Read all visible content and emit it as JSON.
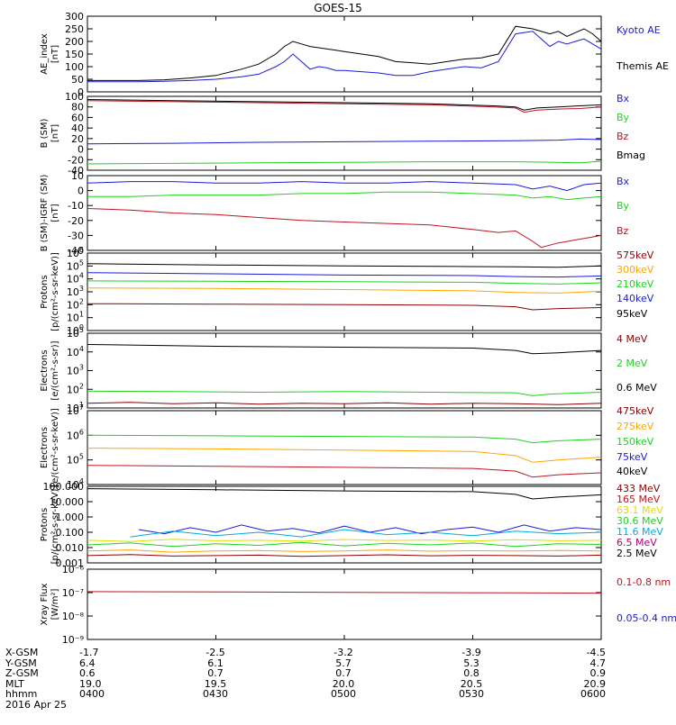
{
  "title": "GOES-15",
  "date_label": "2016 Apr 25",
  "colors": {
    "black": "#000000",
    "blue": "#1a1adb",
    "red": "#c0141e",
    "green": "#1ed21e",
    "orange": "#ffa500",
    "yellow": "#dede00",
    "cyan": "#00aadd",
    "purple": "#b0007a",
    "darkred": "#8b0000"
  },
  "chart_data": [
    {
      "id": "ae",
      "type": "line",
      "ylabel": "AE_index\n[nT]",
      "ylim": [
        0,
        300
      ],
      "yscale": "linear",
      "yticks": [
        "0",
        "50",
        "100",
        "150",
        "200",
        "250",
        "300"
      ],
      "legend": [
        "Kyoto AE",
        "Themis AE"
      ],
      "series": [
        {
          "name": "Kyoto AE",
          "color": "blue",
          "x": [
            0,
            6,
            12,
            18,
            24,
            30,
            36,
            40,
            44,
            46,
            48,
            50,
            52,
            54,
            56,
            58,
            60,
            64,
            68,
            72,
            76,
            80,
            84,
            88,
            92,
            96,
            100,
            104,
            108,
            110,
            112,
            114,
            116,
            118,
            120
          ],
          "y": [
            40,
            40,
            40,
            42,
            45,
            50,
            60,
            70,
            100,
            120,
            150,
            120,
            90,
            100,
            95,
            85,
            85,
            80,
            75,
            65,
            65,
            80,
            90,
            100,
            95,
            120,
            230,
            240,
            180,
            200,
            190,
            200,
            210,
            190,
            170
          ]
        },
        {
          "name": "Themis AE",
          "color": "black",
          "x": [
            0,
            6,
            12,
            18,
            24,
            30,
            36,
            40,
            44,
            46,
            48,
            50,
            52,
            54,
            56,
            58,
            60,
            64,
            68,
            72,
            76,
            80,
            84,
            88,
            92,
            96,
            100,
            104,
            108,
            110,
            112,
            114,
            116,
            118,
            120
          ],
          "y": [
            45,
            45,
            45,
            48,
            55,
            65,
            90,
            110,
            150,
            180,
            200,
            190,
            180,
            175,
            170,
            165,
            160,
            150,
            140,
            120,
            115,
            110,
            120,
            130,
            135,
            150,
            260,
            250,
            230,
            240,
            220,
            235,
            250,
            230,
            200
          ]
        }
      ]
    },
    {
      "id": "bsm",
      "type": "line",
      "ylabel": "B (SM)\n[nT]",
      "ylim": [
        -40,
        100
      ],
      "yscale": "linear",
      "yticks": [
        "-40",
        "-20",
        "0",
        "20",
        "40",
        "60",
        "80",
        "100"
      ],
      "legend": [
        "Bx",
        "By",
        "Bz",
        "Bmag"
      ],
      "series": [
        {
          "name": "Bx",
          "color": "blue",
          "x": [
            0,
            20,
            40,
            60,
            80,
            100,
            110,
            115,
            120
          ],
          "y": [
            10,
            11,
            13,
            14,
            15,
            16,
            17,
            19,
            18
          ]
        },
        {
          "name": "By",
          "color": "green",
          "x": [
            0,
            20,
            40,
            60,
            80,
            100,
            110,
            115,
            120
          ],
          "y": [
            -28,
            -27,
            -26,
            -25,
            -24,
            -24,
            -25,
            -26,
            -23
          ]
        },
        {
          "name": "Bz",
          "color": "red",
          "x": [
            0,
            20,
            40,
            60,
            80,
            95,
            100,
            102,
            105,
            110,
            115,
            120
          ],
          "y": [
            92,
            90,
            88,
            86,
            84,
            80,
            78,
            70,
            74,
            76,
            77,
            80
          ]
        },
        {
          "name": "Bmag",
          "color": "black",
          "x": [
            0,
            20,
            40,
            60,
            80,
            95,
            100,
            102,
            105,
            110,
            115,
            120
          ],
          "y": [
            94,
            92,
            90,
            88,
            86,
            82,
            80,
            74,
            78,
            80,
            82,
            84
          ]
        }
      ]
    },
    {
      "id": "bigrf",
      "type": "line",
      "ylabel": "B (SM)-IGRF (SM)\n[nT]",
      "ylim": [
        -40,
        10
      ],
      "yscale": "linear",
      "yticks": [
        "-40",
        "-30",
        "-20",
        "-10",
        "0",
        "10"
      ],
      "legend": [
        "Bx",
        "By",
        "Bz"
      ],
      "series": [
        {
          "name": "Bx",
          "color": "blue",
          "x": [
            0,
            10,
            20,
            30,
            40,
            50,
            60,
            70,
            80,
            90,
            100,
            104,
            108,
            112,
            116,
            120
          ],
          "y": [
            5,
            6,
            6,
            5,
            5,
            6,
            5,
            5,
            6,
            5,
            4,
            1,
            3,
            0,
            4,
            5
          ]
        },
        {
          "name": "By",
          "color": "green",
          "x": [
            0,
            10,
            20,
            30,
            40,
            50,
            60,
            70,
            80,
            90,
            100,
            104,
            108,
            112,
            116,
            120
          ],
          "y": [
            -4,
            -4,
            -3,
            -3,
            -3,
            -2,
            -2,
            -1,
            -1,
            -2,
            -3,
            -5,
            -4,
            -6,
            -5,
            -4
          ]
        },
        {
          "name": "Bz",
          "color": "red",
          "x": [
            0,
            10,
            20,
            30,
            40,
            50,
            60,
            70,
            80,
            90,
            96,
            100,
            104,
            106,
            110,
            114,
            118,
            120
          ],
          "y": [
            -12,
            -13,
            -15,
            -16,
            -18,
            -20,
            -21,
            -22,
            -23,
            -26,
            -28,
            -27,
            -34,
            -38,
            -35,
            -33,
            -31,
            -30
          ]
        }
      ]
    },
    {
      "id": "protons1",
      "type": "line",
      "ylabel": "Protons\n[p/(cm²-s-sr-keV)]",
      "ylim": [
        1,
        1000000
      ],
      "yscale": "log",
      "ytick_exponents": [
        0,
        1,
        2,
        3,
        4,
        5,
        6
      ],
      "legend": [
        "575keV",
        "300keV",
        "210keV",
        "140keV",
        "95keV"
      ],
      "series": [
        {
          "name": "575keV",
          "color": "black",
          "x": [
            0,
            30,
            60,
            90,
            100,
            110,
            120
          ],
          "y": [
            150000,
            120000,
            100000,
            90000,
            85000,
            80000,
            100000
          ]
        },
        {
          "name": "300keV",
          "color": "blue",
          "x": [
            0,
            30,
            60,
            90,
            100,
            110,
            120
          ],
          "y": [
            30000,
            25000,
            20000,
            18000,
            15000,
            14000,
            17000
          ]
        },
        {
          "name": "210keV",
          "color": "green",
          "x": [
            0,
            30,
            60,
            90,
            100,
            110,
            120
          ],
          "y": [
            7000,
            6500,
            6000,
            5500,
            4500,
            4000,
            5000
          ]
        },
        {
          "name": "140keV",
          "color": "orange",
          "x": [
            0,
            30,
            60,
            90,
            100,
            110,
            120
          ],
          "y": [
            2000,
            1800,
            1500,
            1200,
            900,
            800,
            1100
          ]
        },
        {
          "name": "95keV",
          "color": "darkred",
          "x": [
            0,
            30,
            60,
            90,
            100,
            104,
            110,
            120
          ],
          "y": [
            120,
            110,
            100,
            90,
            70,
            40,
            50,
            60
          ]
        }
      ]
    },
    {
      "id": "electrons1",
      "type": "line",
      "ylabel": "Electrons\n[e/(cm²-s-sr)]",
      "ylim": [
        10,
        100000
      ],
      "yscale": "log",
      "ytick_exponents": [
        1,
        2,
        3,
        4,
        5
      ],
      "legend": [
        "4 MeV",
        "2 MeV",
        "0.6 MeV"
      ],
      "series": [
        {
          "name": "0.6 MeV",
          "color": "black",
          "x": [
            0,
            30,
            60,
            90,
            100,
            104,
            110,
            120
          ],
          "y": [
            25000,
            20000,
            18000,
            16000,
            12000,
            8000,
            9000,
            12000
          ]
        },
        {
          "name": "2 MeV",
          "color": "green",
          "x": [
            0,
            20,
            40,
            60,
            80,
            100,
            104,
            108,
            112,
            120
          ],
          "y": [
            80,
            75,
            70,
            75,
            70,
            65,
            45,
            55,
            60,
            70
          ]
        },
        {
          "name": "4 MeV",
          "color": "darkred",
          "x": [
            0,
            10,
            20,
            30,
            40,
            50,
            60,
            70,
            80,
            90,
            100,
            110,
            120
          ],
          "y": [
            18,
            20,
            17,
            19,
            16,
            18,
            17,
            19,
            16,
            18,
            17,
            15,
            18
          ]
        }
      ]
    },
    {
      "id": "electrons2",
      "type": "line",
      "ylabel": "Electrons\n[e/(cm²-s-sr-keV)]",
      "ylim": [
        10000,
        10000000
      ],
      "yscale": "log",
      "ytick_exponents": [
        4,
        5,
        6,
        7
      ],
      "legend": [
        "475keV",
        "275keV",
        "150keV",
        "75keV",
        "40keV"
      ],
      "series": [
        {
          "name": "150keV",
          "color": "green",
          "x": [
            0,
            30,
            60,
            90,
            100,
            104,
            110,
            120
          ],
          "y": [
            1000000,
            950000,
            900000,
            850000,
            700000,
            500000,
            600000,
            700000
          ]
        },
        {
          "name": "275keV",
          "color": "orange",
          "x": [
            0,
            30,
            60,
            90,
            100,
            104,
            110,
            120
          ],
          "y": [
            300000,
            280000,
            250000,
            220000,
            150000,
            80000,
            100000,
            130000
          ]
        },
        {
          "name": "475keV",
          "color": "red",
          "x": [
            0,
            30,
            60,
            90,
            100,
            104,
            110,
            120
          ],
          "y": [
            60000,
            55000,
            50000,
            45000,
            35000,
            20000,
            25000,
            30000
          ]
        }
      ]
    },
    {
      "id": "protons2",
      "type": "line",
      "ylabel": "Protons\n[p/(cm²-s-sr-keV)]",
      "ylim": [
        0.001,
        100
      ],
      "yscale": "log",
      "yticks": [
        "0.001",
        "0.010",
        "0.100",
        "1.000",
        "10.000",
        "100.000"
      ],
      "legend": [
        "433 MeV",
        "165 MeV",
        "63.1 MeV",
        "30.6 MeV",
        "11.6 MeV",
        "6.5 MeV",
        "2.5 MeV"
      ],
      "series": [
        {
          "name": "2.5 MeV",
          "color": "black",
          "x": [
            0,
            30,
            60,
            90,
            100,
            104,
            110,
            120
          ],
          "y": [
            70,
            60,
            50,
            45,
            30,
            15,
            20,
            28
          ]
        },
        {
          "name": "11.6 MeV",
          "color": "blue",
          "x": [
            12,
            18,
            24,
            30,
            36,
            42,
            48,
            54,
            60,
            66,
            72,
            78,
            84,
            90,
            96,
            102,
            108,
            114,
            120
          ],
          "y": [
            0.15,
            0.08,
            0.2,
            0.1,
            0.3,
            0.12,
            0.18,
            0.09,
            0.25,
            0.1,
            0.2,
            0.08,
            0.15,
            0.22,
            0.1,
            0.3,
            0.12,
            0.2,
            0.15
          ]
        },
        {
          "name": "6.5 MeV",
          "color": "cyan",
          "x": [
            10,
            20,
            30,
            40,
            50,
            60,
            70,
            80,
            90,
            100,
            110,
            120
          ],
          "y": [
            0.05,
            0.12,
            0.06,
            0.1,
            0.05,
            0.15,
            0.07,
            0.1,
            0.06,
            0.12,
            0.08,
            0.1
          ]
        },
        {
          "name": "30.6 MeV",
          "color": "green",
          "x": [
            0,
            10,
            20,
            30,
            40,
            50,
            60,
            70,
            80,
            90,
            100,
            110,
            120
          ],
          "y": [
            0.015,
            0.02,
            0.012,
            0.018,
            0.014,
            0.022,
            0.013,
            0.019,
            0.015,
            0.02,
            0.012,
            0.018,
            0.016
          ]
        },
        {
          "name": "63.1 MeV",
          "color": "yellow",
          "x": [
            0,
            10,
            20,
            30,
            40,
            50,
            60,
            70,
            80,
            90,
            100,
            110,
            120
          ],
          "y": [
            0.03,
            0.025,
            0.035,
            0.028,
            0.03,
            0.026,
            0.034,
            0.029,
            0.031,
            0.027,
            0.033,
            0.028,
            0.03
          ]
        },
        {
          "name": "165 MeV",
          "color": "orange",
          "x": [
            0,
            10,
            20,
            30,
            40,
            50,
            60,
            70,
            80,
            90,
            100,
            110,
            120
          ],
          "y": [
            0.006,
            0.007,
            0.005,
            0.006,
            0.0065,
            0.0055,
            0.006,
            0.007,
            0.0058,
            0.0062,
            0.006,
            0.0065,
            0.006
          ]
        },
        {
          "name": "433 MeV",
          "color": "darkred",
          "x": [
            0,
            10,
            20,
            30,
            40,
            50,
            60,
            70,
            80,
            90,
            100,
            110,
            120
          ],
          "y": [
            0.003,
            0.0035,
            0.0028,
            0.003,
            0.0032,
            0.0027,
            0.003,
            0.0034,
            0.0029,
            0.0031,
            0.003,
            0.0028,
            0.0032
          ]
        }
      ]
    },
    {
      "id": "xray",
      "type": "line",
      "ylabel": "Xray Flux\n[W/m²]",
      "ylim": [
        1e-09,
        1e-08
      ],
      "yscale": "log",
      "yticks": [
        "10⁻⁹",
        "10⁻⁸",
        "10⁻⁷",
        "10⁻⁶"
      ],
      "legend": [
        "0.1-0.8 nm",
        "0.05-0.4 nm"
      ],
      "series": [
        {
          "name": "0.1-0.8 nm",
          "color": "red",
          "x": [
            0,
            20,
            40,
            60,
            80,
            100,
            120
          ],
          "y": [
            1.1e-07,
            1.08e-07,
            1.05e-07,
            1.02e-07,
            1e-07,
            9.8e-08,
            9.5e-08
          ]
        }
      ]
    }
  ],
  "x_axis": {
    "row_labels": [
      "X-GSM",
      "Y-GSM",
      "Z-GSM",
      "MLT",
      "hhmm"
    ],
    "columns": [
      {
        "values": [
          "-1.7",
          "6.4",
          "0.6",
          "19.0",
          "0400"
        ]
      },
      {
        "values": [
          "-2.5",
          "6.1",
          "0.7",
          "19.5",
          "0430"
        ]
      },
      {
        "values": [
          "-3.2",
          "5.7",
          "0.7",
          "20.0",
          "0500"
        ]
      },
      {
        "values": [
          "-3.9",
          "5.3",
          "0.8",
          "20.5",
          "0530"
        ]
      },
      {
        "values": [
          "-4.5",
          "4.7",
          "0.9",
          "20.9",
          "0600"
        ]
      }
    ]
  }
}
